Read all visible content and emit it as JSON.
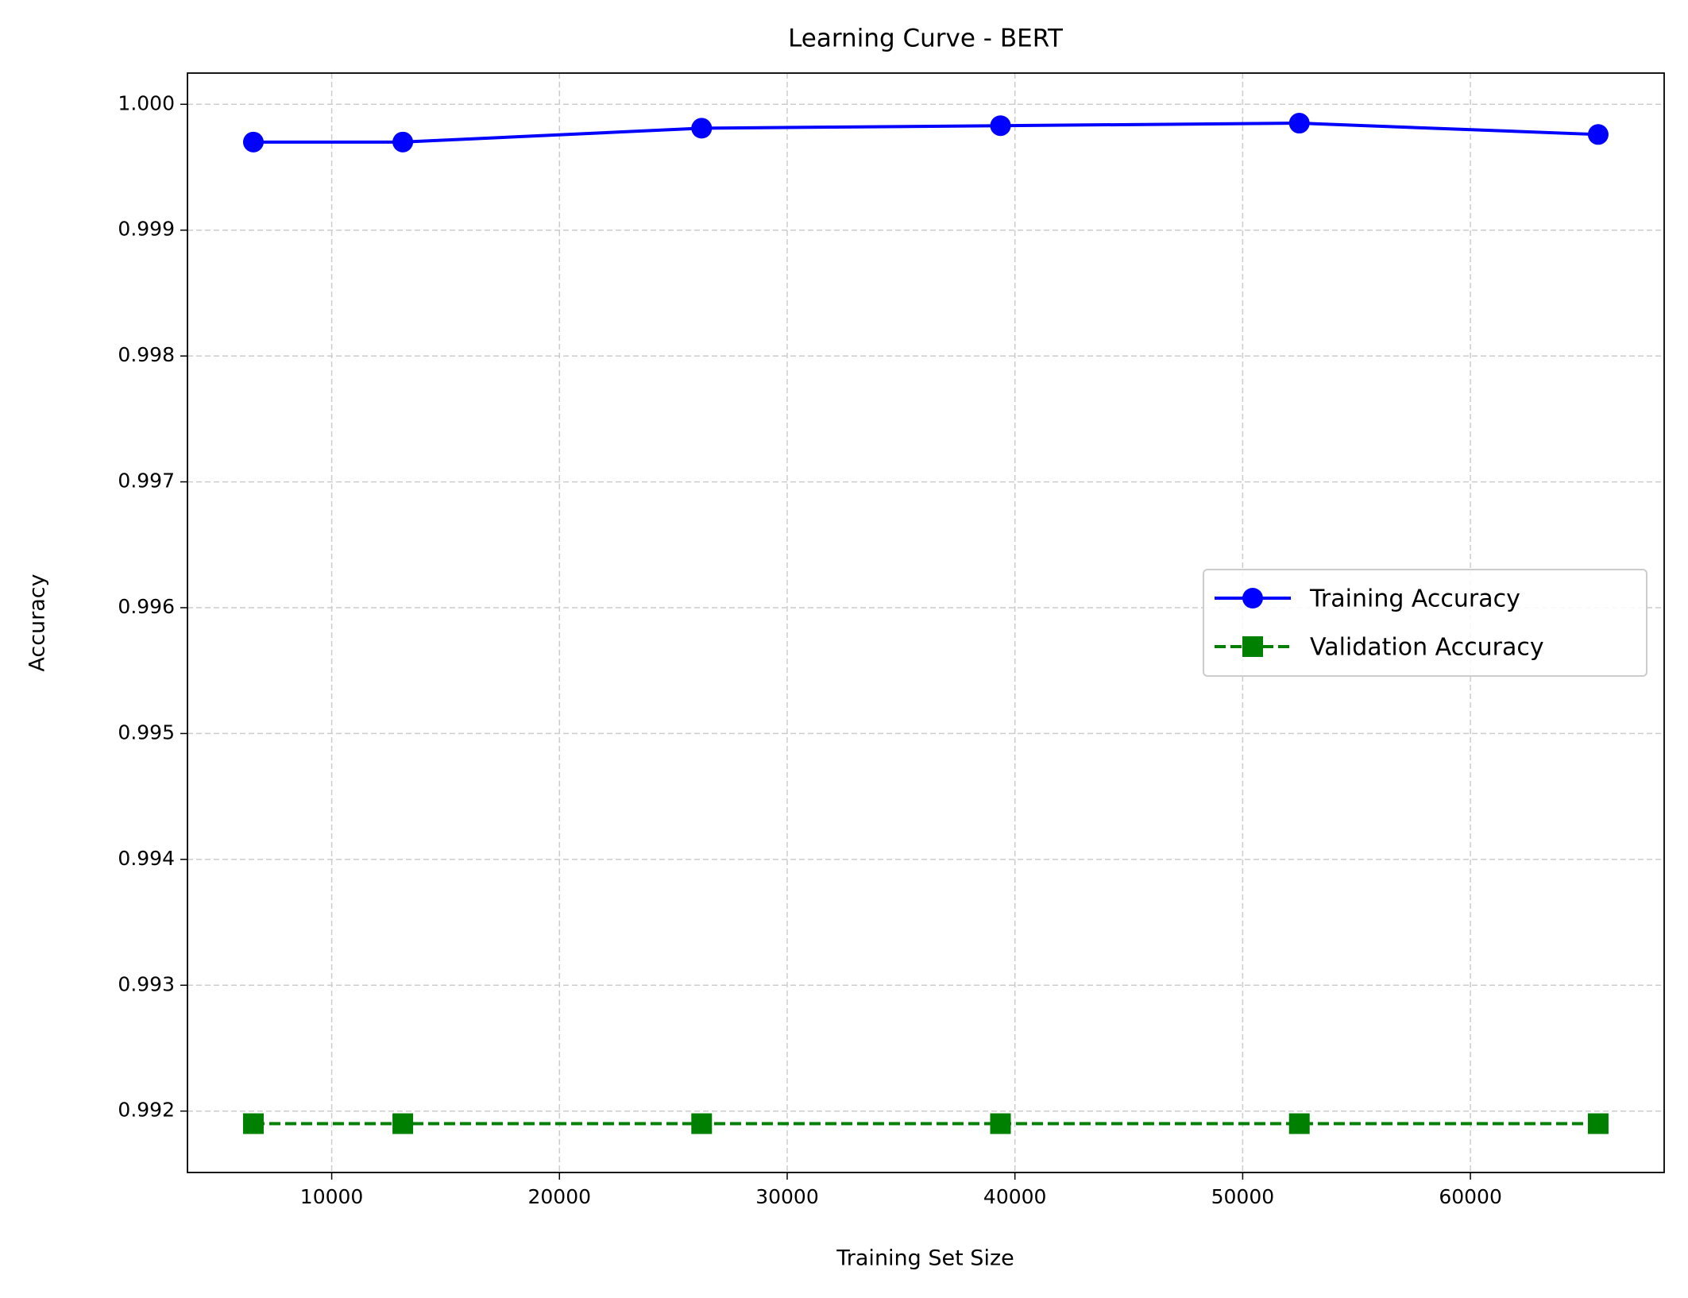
{
  "chart_data": {
    "type": "line",
    "title": "Learning Curve - BERT",
    "xlabel": "Training Set Size",
    "ylabel": "Accuracy",
    "x": [
      6561,
      13122,
      26244,
      39366,
      52488,
      65610
    ],
    "series": [
      {
        "name": "Training Accuracy",
        "color": "#0000ff",
        "linestyle": "solid",
        "marker": "circle",
        "values": [
          0.9997,
          0.9997,
          0.99981,
          0.99983,
          0.99985,
          0.99976
        ]
      },
      {
        "name": "Validation Accuracy",
        "color": "#008000",
        "linestyle": "dashed",
        "marker": "square",
        "values": [
          0.9919,
          0.9919,
          0.9919,
          0.9919,
          0.9919,
          0.9919
        ]
      }
    ],
    "xlim": [
      3667,
      68507
    ],
    "xticks": [
      10000,
      20000,
      30000,
      40000,
      50000,
      60000
    ],
    "ylim": [
      0.991512,
      1.000248
    ],
    "yticks": [
      0.992,
      0.993,
      0.994,
      0.995,
      0.996,
      0.997,
      0.998,
      0.999,
      {
        "value": 1,
        "label": "1.000"
      }
    ],
    "grid": true,
    "legend": "center right"
  }
}
